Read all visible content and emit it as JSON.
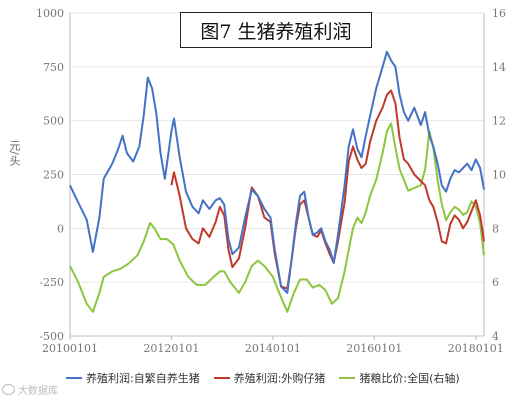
{
  "chart_data": {
    "type": "line",
    "title": "图7 生猪养殖利润",
    "ylabel": "元/头",
    "ylim": [
      -500,
      1000
    ],
    "y2lim": [
      4,
      16
    ],
    "yticks": [
      "1000",
      "750",
      "500",
      "250",
      "0",
      "-250",
      "-500"
    ],
    "y2ticks": [
      "16",
      "14",
      "12",
      "10",
      "8",
      "6",
      "4"
    ],
    "xlim": [
      "2010-01-01",
      "2018-03-01"
    ],
    "xticks": [
      "20100101",
      "20120101",
      "20140101",
      "20160101",
      "20180101"
    ],
    "legend_position": "bottom",
    "series": [
      {
        "name": "养殖利润:自繁自养生猪",
        "axis": "left",
        "color": "#4472c4",
        "points": [
          [
            "2010-01-01",
            200
          ],
          [
            "2010-03-01",
            120
          ],
          [
            "2010-05-01",
            40
          ],
          [
            "2010-06-15",
            -110
          ],
          [
            "2010-08-01",
            50
          ],
          [
            "2010-09-01",
            230
          ],
          [
            "2010-11-01",
            300
          ],
          [
            "2010-12-15",
            370
          ],
          [
            "2011-01-15",
            430
          ],
          [
            "2011-02-15",
            350
          ],
          [
            "2011-04-01",
            310
          ],
          [
            "2011-05-15",
            380
          ],
          [
            "2011-06-15",
            520
          ],
          [
            "2011-07-15",
            700
          ],
          [
            "2011-08-15",
            650
          ],
          [
            "2011-09-15",
            530
          ],
          [
            "2011-10-15",
            350
          ],
          [
            "2011-11-15",
            230
          ],
          [
            "2012-01-01",
            450
          ],
          [
            "2012-01-20",
            510
          ],
          [
            "2012-03-01",
            330
          ],
          [
            "2012-04-15",
            170
          ],
          [
            "2012-06-01",
            100
          ],
          [
            "2012-07-15",
            70
          ],
          [
            "2012-08-15",
            130
          ],
          [
            "2012-10-01",
            90
          ],
          [
            "2012-11-15",
            130
          ],
          [
            "2012-12-15",
            140
          ],
          [
            "2013-01-15",
            110
          ],
          [
            "2013-02-15",
            -50
          ],
          [
            "2013-03-15",
            -120
          ],
          [
            "2013-05-01",
            -90
          ],
          [
            "2013-06-15",
            50
          ],
          [
            "2013-08-01",
            180
          ],
          [
            "2013-09-15",
            150
          ],
          [
            "2013-11-01",
            90
          ],
          [
            "2013-12-15",
            50
          ],
          [
            "2014-01-15",
            -100
          ],
          [
            "2014-03-01",
            -270
          ],
          [
            "2014-04-15",
            -300
          ],
          [
            "2014-05-15",
            -150
          ],
          [
            "2014-06-15",
            20
          ],
          [
            "2014-07-15",
            150
          ],
          [
            "2014-08-15",
            170
          ],
          [
            "2014-09-15",
            50
          ],
          [
            "2014-10-15",
            -30
          ],
          [
            "2014-11-15",
            -20
          ],
          [
            "2014-12-15",
            0
          ],
          [
            "2015-01-15",
            -60
          ],
          [
            "2015-02-15",
            -100
          ],
          [
            "2015-03-15",
            -160
          ],
          [
            "2015-04-15",
            -30
          ],
          [
            "2015-06-01",
            200
          ],
          [
            "2015-07-01",
            380
          ],
          [
            "2015-08-01",
            460
          ],
          [
            "2015-09-01",
            370
          ],
          [
            "2015-10-01",
            330
          ],
          [
            "2015-11-01",
            430
          ],
          [
            "2015-12-01",
            520
          ],
          [
            "2016-01-15",
            650
          ],
          [
            "2016-03-01",
            750
          ],
          [
            "2016-04-01",
            820
          ],
          [
            "2016-05-01",
            780
          ],
          [
            "2016-06-01",
            750
          ],
          [
            "2016-07-01",
            620
          ],
          [
            "2016-08-01",
            540
          ],
          [
            "2016-09-01",
            500
          ],
          [
            "2016-10-15",
            560
          ],
          [
            "2016-12-01",
            480
          ],
          [
            "2017-01-01",
            540
          ],
          [
            "2017-02-01",
            430
          ],
          [
            "2017-03-01",
            380
          ],
          [
            "2017-04-01",
            300
          ],
          [
            "2017-05-01",
            200
          ],
          [
            "2017-06-01",
            170
          ],
          [
            "2017-07-01",
            230
          ],
          [
            "2017-08-01",
            270
          ],
          [
            "2017-09-01",
            260
          ],
          [
            "2017-10-01",
            280
          ],
          [
            "2017-11-01",
            300
          ],
          [
            "2017-12-01",
            270
          ],
          [
            "2018-01-01",
            320
          ],
          [
            "2018-02-01",
            280
          ],
          [
            "2018-03-01",
            180
          ]
        ]
      },
      {
        "name": "养殖利润:外购仔猪",
        "axis": "left",
        "color": "#c0392b",
        "points": [
          [
            "2012-01-01",
            200
          ],
          [
            "2012-01-20",
            260
          ],
          [
            "2012-03-01",
            150
          ],
          [
            "2012-04-15",
            0
          ],
          [
            "2012-06-01",
            -50
          ],
          [
            "2012-07-15",
            -70
          ],
          [
            "2012-08-15",
            0
          ],
          [
            "2012-10-01",
            -40
          ],
          [
            "2012-11-15",
            30
          ],
          [
            "2012-12-15",
            100
          ],
          [
            "2013-01-15",
            60
          ],
          [
            "2013-02-15",
            -100
          ],
          [
            "2013-03-15",
            -180
          ],
          [
            "2013-05-01",
            -140
          ],
          [
            "2013-06-15",
            0
          ],
          [
            "2013-08-01",
            190
          ],
          [
            "2013-09-15",
            150
          ],
          [
            "2013-11-01",
            50
          ],
          [
            "2013-12-15",
            30
          ],
          [
            "2014-01-15",
            -120
          ],
          [
            "2014-03-01",
            -270
          ],
          [
            "2014-04-15",
            -280
          ],
          [
            "2014-05-15",
            -150
          ],
          [
            "2014-06-15",
            0
          ],
          [
            "2014-07-15",
            110
          ],
          [
            "2014-08-15",
            130
          ],
          [
            "2014-09-15",
            50
          ],
          [
            "2014-10-15",
            -30
          ],
          [
            "2014-11-15",
            -40
          ],
          [
            "2014-12-15",
            -10
          ],
          [
            "2015-01-15",
            -70
          ],
          [
            "2015-02-15",
            -120
          ],
          [
            "2015-03-15",
            -160
          ],
          [
            "2015-04-15",
            -60
          ],
          [
            "2015-06-01",
            120
          ],
          [
            "2015-07-01",
            310
          ],
          [
            "2015-08-01",
            380
          ],
          [
            "2015-09-01",
            320
          ],
          [
            "2015-10-01",
            280
          ],
          [
            "2015-11-01",
            300
          ],
          [
            "2015-12-01",
            400
          ],
          [
            "2016-01-15",
            500
          ],
          [
            "2016-03-01",
            560
          ],
          [
            "2016-04-01",
            620
          ],
          [
            "2016-05-01",
            640
          ],
          [
            "2016-06-01",
            580
          ],
          [
            "2016-07-01",
            420
          ],
          [
            "2016-08-01",
            320
          ],
          [
            "2016-09-01",
            300
          ],
          [
            "2016-10-15",
            250
          ],
          [
            "2016-12-01",
            220
          ],
          [
            "2017-01-01",
            200
          ],
          [
            "2017-02-01",
            130
          ],
          [
            "2017-03-01",
            100
          ],
          [
            "2017-04-01",
            30
          ],
          [
            "2017-05-01",
            -60
          ],
          [
            "2017-06-01",
            -70
          ],
          [
            "2017-07-01",
            20
          ],
          [
            "2017-08-01",
            60
          ],
          [
            "2017-09-01",
            40
          ],
          [
            "2017-10-01",
            0
          ],
          [
            "2017-11-01",
            30
          ],
          [
            "2017-12-01",
            80
          ],
          [
            "2018-01-01",
            130
          ],
          [
            "2018-02-01",
            60
          ],
          [
            "2018-03-01",
            -60
          ]
        ]
      },
      {
        "name": "猪粮比价:全国(右轴)",
        "axis": "right",
        "color": "#8cc63e",
        "points": [
          [
            "2010-01-01",
            6.6
          ],
          [
            "2010-03-01",
            6.0
          ],
          [
            "2010-05-01",
            5.2
          ],
          [
            "2010-06-15",
            4.9
          ],
          [
            "2010-08-01",
            5.6
          ],
          [
            "2010-09-01",
            6.2
          ],
          [
            "2010-11-01",
            6.4
          ],
          [
            "2011-01-01",
            6.5
          ],
          [
            "2011-03-01",
            6.7
          ],
          [
            "2011-05-01",
            7.0
          ],
          [
            "2011-06-15",
            7.5
          ],
          [
            "2011-08-01",
            8.2
          ],
          [
            "2011-09-01",
            8.0
          ],
          [
            "2011-10-15",
            7.6
          ],
          [
            "2011-12-01",
            7.6
          ],
          [
            "2012-01-15",
            7.4
          ],
          [
            "2012-03-01",
            6.8
          ],
          [
            "2012-05-01",
            6.2
          ],
          [
            "2012-07-01",
            5.9
          ],
          [
            "2012-09-01",
            5.9
          ],
          [
            "2012-11-01",
            6.2
          ],
          [
            "2012-12-15",
            6.4
          ],
          [
            "2013-01-15",
            6.4
          ],
          [
            "2013-03-01",
            6.0
          ],
          [
            "2013-05-01",
            5.6
          ],
          [
            "2013-06-15",
            6.0
          ],
          [
            "2013-08-01",
            6.6
          ],
          [
            "2013-09-15",
            6.8
          ],
          [
            "2013-11-01",
            6.6
          ],
          [
            "2014-01-01",
            6.2
          ],
          [
            "2014-02-15",
            5.6
          ],
          [
            "2014-04-15",
            4.9
          ],
          [
            "2014-06-01",
            5.6
          ],
          [
            "2014-07-15",
            6.1
          ],
          [
            "2014-09-01",
            6.1
          ],
          [
            "2014-10-15",
            5.8
          ],
          [
            "2014-12-01",
            5.9
          ],
          [
            "2015-01-15",
            5.7
          ],
          [
            "2015-03-01",
            5.2
          ],
          [
            "2015-04-15",
            5.4
          ],
          [
            "2015-06-01",
            6.4
          ],
          [
            "2015-07-01",
            7.2
          ],
          [
            "2015-08-01",
            8.0
          ],
          [
            "2015-09-01",
            8.4
          ],
          [
            "2015-10-01",
            8.2
          ],
          [
            "2015-11-01",
            8.6
          ],
          [
            "2015-12-01",
            9.2
          ],
          [
            "2016-01-15",
            9.8
          ],
          [
            "2016-03-01",
            10.8
          ],
          [
            "2016-04-01",
            11.6
          ],
          [
            "2016-05-01",
            11.9
          ],
          [
            "2016-06-01",
            11.0
          ],
          [
            "2016-07-01",
            10.2
          ],
          [
            "2016-08-01",
            9.8
          ],
          [
            "2016-09-01",
            9.4
          ],
          [
            "2016-10-15",
            9.5
          ],
          [
            "2016-12-01",
            9.6
          ],
          [
            "2017-01-01",
            10.2
          ],
          [
            "2017-02-01",
            11.6
          ],
          [
            "2017-03-01",
            11.0
          ],
          [
            "2017-04-01",
            9.8
          ],
          [
            "2017-05-01",
            8.9
          ],
          [
            "2017-06-01",
            8.3
          ],
          [
            "2017-07-01",
            8.6
          ],
          [
            "2017-08-01",
            8.8
          ],
          [
            "2017-09-01",
            8.7
          ],
          [
            "2017-10-01",
            8.5
          ],
          [
            "2017-11-01",
            8.6
          ],
          [
            "2017-12-01",
            9.0
          ],
          [
            "2018-01-01",
            8.8
          ],
          [
            "2018-02-01",
            8.2
          ],
          [
            "2018-03-01",
            7.0
          ]
        ]
      }
    ]
  },
  "watermark": "大数据库"
}
